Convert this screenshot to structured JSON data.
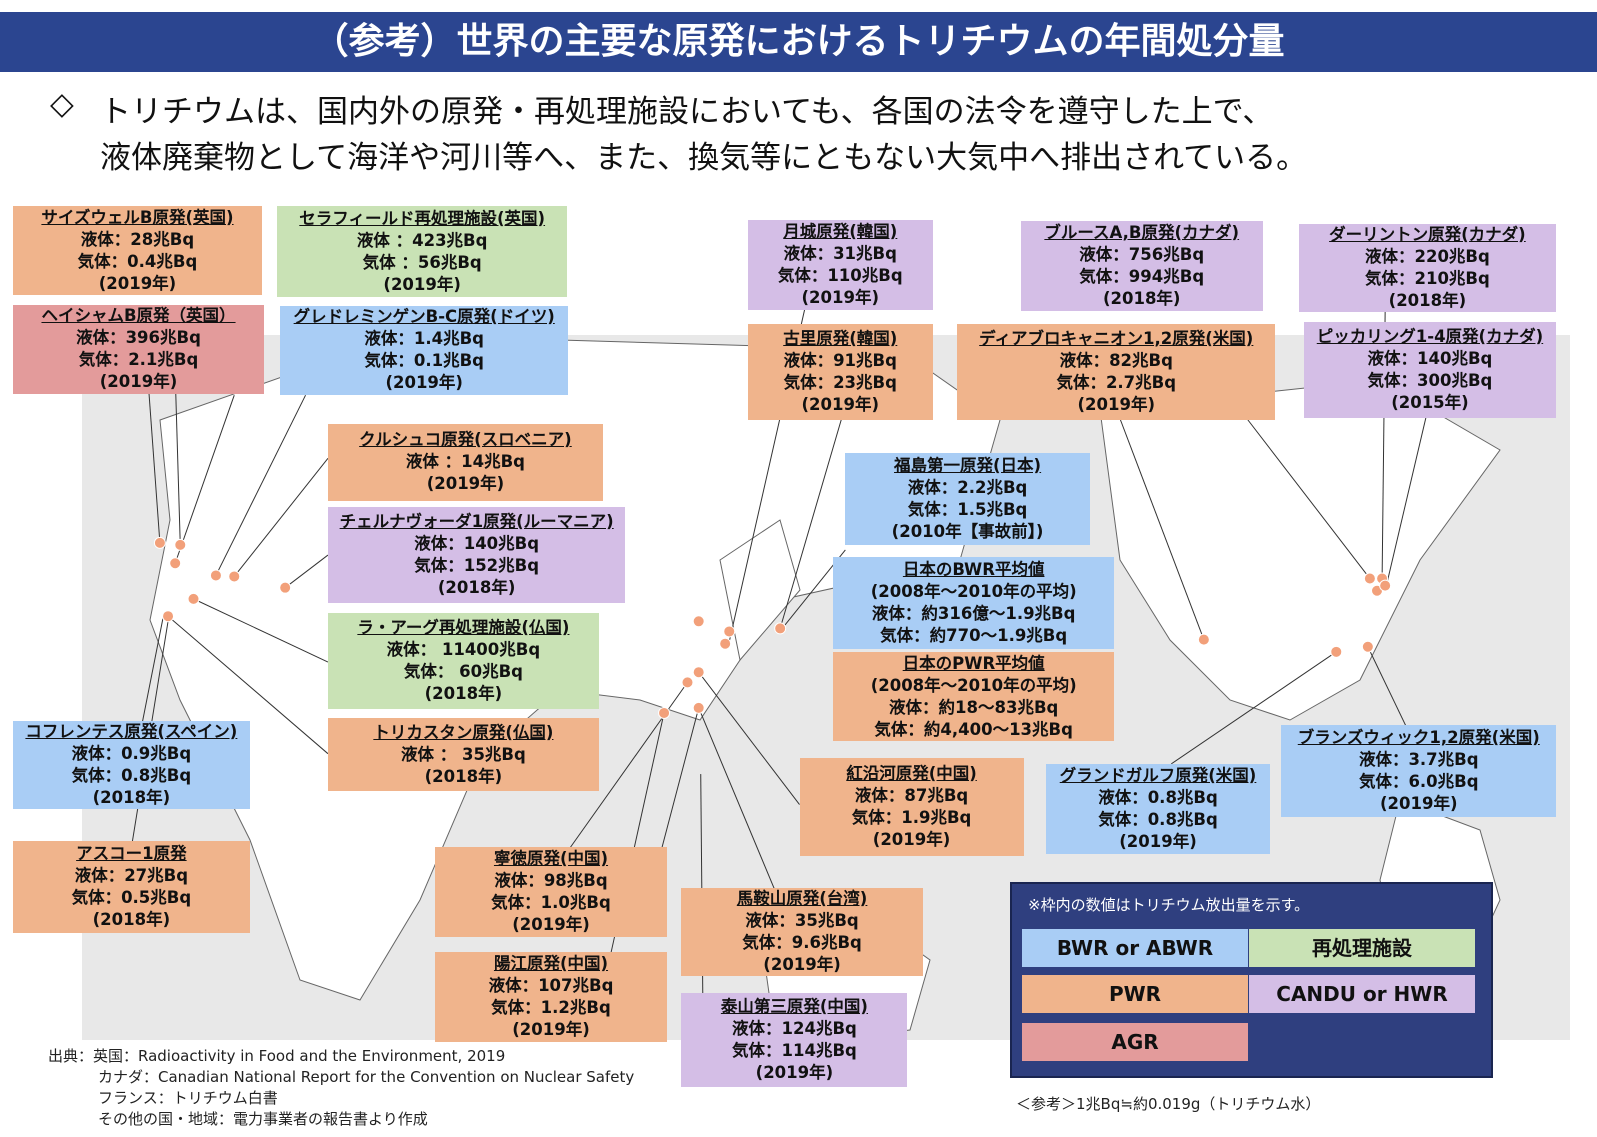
{
  "header": {
    "title": "（参考）世界の主要な原発におけるトリチウムの年間処分量"
  },
  "intro": {
    "marker": "◇",
    "lines": [
      "トリチウムは、国内外の原発・再処理施設においても、各国の法令を遵守した上で、",
      "液体廃棄物として海洋や河川等へ、また、換気等にともない大気中へ排出されている。"
    ]
  },
  "boxes": [
    {
      "title": "サイズウェルB原発(英国)",
      "lines": [
        "液体：28兆Bq",
        "気体：0.4兆Bq",
        "(2019年)"
      ],
      "color": "#f0b48c"
    },
    {
      "title": "セラフィールド再処理施設(英国)",
      "lines": [
        "液体 ：423兆Bq",
        "気体 ：56兆Bq",
        "(2019年)"
      ],
      "color": "#c9e2b5"
    },
    {
      "title": "ヘイシャムB原発（英国）",
      "lines": [
        "液体：396兆Bq",
        "気体：2.1兆Bq",
        "(2019年)"
      ],
      "color": "#e39b9b"
    },
    {
      "title": "グレドレミンゲンB-C原発(ドイツ)",
      "lines": [
        "液体：1.4兆Bq",
        "気体：0.1兆Bq",
        "(2019年)"
      ],
      "color": "#a9cdf5"
    },
    {
      "title": "月城原発(韓国)",
      "lines": [
        "液体：31兆Bq",
        "気体：110兆Bq",
        "(2019年)"
      ],
      "color": "#d4bee6"
    },
    {
      "title": "ブルースA,B原発(カナダ)",
      "lines": [
        "液体：756兆Bq",
        "気体：994兆Bq",
        "(2018年)"
      ],
      "color": "#d4bee6"
    },
    {
      "title": "ダーリントン原発(カナダ)",
      "lines": [
        "液体：220兆Bq",
        "気体：210兆Bq",
        "(2018年)"
      ],
      "color": "#d4bee6"
    },
    {
      "title": "古里原発(韓国)",
      "lines": [
        "液体：91兆Bq",
        "気体：23兆Bq",
        "(2019年)"
      ],
      "color": "#f0b48c"
    },
    {
      "title": "ディアブロキャニオン1,2原発(米国)",
      "lines": [
        "液体：82兆Bq",
        "気体：2.7兆Bq",
        "(2019年)"
      ],
      "color": "#f0b48c"
    },
    {
      "title": "ピッカリング1-4原発(カナダ)",
      "lines": [
        "液体：140兆Bq",
        "気体：300兆Bq",
        "(2015年)"
      ],
      "color": "#d4bee6"
    },
    {
      "title": "クルシュコ原発(スロベニア)",
      "lines": [
        "液体 ：14兆Bq",
        "(2019年)"
      ],
      "color": "#f0b48c"
    },
    {
      "title": "福島第一原発(日本)",
      "lines": [
        "液体：2.2兆Bq",
        "気体：1.5兆Bq",
        "(2010年【事故前】)"
      ],
      "color": "#a9cdf5"
    },
    {
      "title": "チェルナヴォーダ1原発(ルーマニア)",
      "lines": [
        "液体：140兆Bq",
        "気体：152兆Bq",
        "(2018年)"
      ],
      "color": "#d4bee6"
    },
    {
      "title": "日本のBWR平均値",
      "lines": [
        "(2008年～2010年の平均)",
        "液体：約316億～1.9兆Bq",
        "気体：約770～1.9兆Bq"
      ],
      "color": "#a9cdf5"
    },
    {
      "title": "ラ・アーグ再処理施設(仏国)",
      "lines": [
        "液体： 11400兆Bq",
        "気体： 60兆Bq",
        "(2018年)"
      ],
      "color": "#c9e2b5"
    },
    {
      "title": "日本のPWR平均値",
      "lines": [
        "(2008年～2010年の平均)",
        "液体：約18～83兆Bq",
        "気体：約4,400～13兆Bq"
      ],
      "color": "#f0b48c"
    },
    {
      "title": "コフレンテス原発(スペイン)",
      "lines": [
        "液体：0.9兆Bq",
        "気体：0.8兆Bq",
        "(2018年)"
      ],
      "color": "#a9cdf5"
    },
    {
      "title": "トリカスタン原発(仏国)",
      "lines": [
        "液体 ： 35兆Bq",
        "(2018年)"
      ],
      "color": "#f0b48c"
    },
    {
      "title": "紅沿河原発(中国)",
      "lines": [
        "液体：87兆Bq",
        "気体：1.9兆Bq",
        "(2019年)"
      ],
      "color": "#f0b48c"
    },
    {
      "title": "グランドガルフ原発(米国)",
      "lines": [
        "液体：0.8兆Bq",
        "気体：0.8兆Bq",
        "(2019年)"
      ],
      "color": "#a9cdf5"
    },
    {
      "title": "ブランズウィック1,2原発(米国)",
      "lines": [
        "液体：3.7兆Bq",
        "気体：6.0兆Bq",
        "(2019年)"
      ],
      "color": "#a9cdf5"
    },
    {
      "title": "アスコー1原発",
      "lines": [
        "液体：27兆Bq",
        "気体：0.5兆Bq",
        "(2018年)"
      ],
      "color": "#f0b48c"
    },
    {
      "title": "寧徳原発(中国)",
      "lines": [
        "液体：98兆Bq",
        "気体：1.0兆Bq",
        "(2019年)"
      ],
      "color": "#f0b48c"
    },
    {
      "title": "馬鞍山原発(台湾)",
      "lines": [
        "液体：35兆Bq",
        "気体：9.6兆Bq",
        "(2019年)"
      ],
      "color": "#f0b48c"
    },
    {
      "title": "陽江原発(中国)",
      "lines": [
        "液体：107兆Bq",
        "気体：1.2兆Bq",
        "(2019年)"
      ],
      "color": "#f0b48c"
    },
    {
      "title": "泰山第三原発(中国)",
      "lines": [
        "液体：124兆Bq",
        "気体：114兆Bq",
        "(2019年)"
      ],
      "color": "#d4bee6"
    }
  ],
  "legend": {
    "note": "※枠内の数値はトリチウム放出量を示す。",
    "items": [
      {
        "label": "BWR or ABWR",
        "color": "#a9cdf5"
      },
      {
        "label": "再処理施設",
        "color": "#c9e2b5"
      },
      {
        "label": "PWR",
        "color": "#f0b48c"
      },
      {
        "label": "CANDU or HWR",
        "color": "#d4bee6"
      },
      {
        "label": "AGR",
        "color": "#e39b9b"
      }
    ]
  },
  "sources": [
    "出典：英国：Radioactivity in Food and the Environment, 2019",
    "カナダ：Canadian National Report for the Convention on Nuclear Safety",
    "フランス：トリチウム白書",
    "その他の国・地域：電力事業者の報告書より作成"
  ],
  "reference": "＜参考＞1兆Bq≒約0.019g（トリチウム水）"
}
